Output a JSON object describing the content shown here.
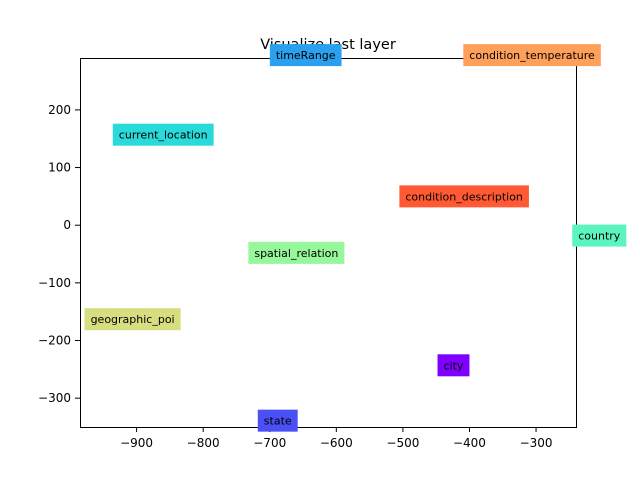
{
  "chart_data": {
    "type": "scatter",
    "title": "Visualize last layer",
    "xlabel": "",
    "ylabel": "",
    "xlim": [
      -985,
      -240
    ],
    "ylim": [
      -350,
      290
    ],
    "xticks": [
      -900,
      -800,
      -700,
      -600,
      -500,
      -400,
      -300
    ],
    "yticks": [
      -300,
      -200,
      -100,
      0,
      100,
      200
    ],
    "xtick_labels": [
      "−900",
      "−800",
      "−700",
      "−600",
      "−500",
      "−400",
      "−300"
    ],
    "ytick_labels": [
      "−300",
      "−200",
      "−100",
      "0",
      "100",
      "200"
    ],
    "grid": false,
    "points": [
      {
        "label": "timeRange",
        "x": -646,
        "y": 295,
        "color": "#2aa0ee"
      },
      {
        "label": "condition_temperature",
        "x": -306,
        "y": 295,
        "color": "#ffa05a"
      },
      {
        "label": "current_location",
        "x": -860,
        "y": 157,
        "color": "#2ad9d9"
      },
      {
        "label": "condition_description",
        "x": -408,
        "y": 50,
        "color": "#ff5a33"
      },
      {
        "label": "country",
        "x": -205,
        "y": -18,
        "color": "#5cf5c0"
      },
      {
        "label": "spatial_relation",
        "x": -660,
        "y": -48,
        "color": "#97f89b"
      },
      {
        "label": "geographic_poi",
        "x": -906,
        "y": -163,
        "color": "#d6de80"
      },
      {
        "label": "city",
        "x": -424,
        "y": -243,
        "color": "#8000ff"
      },
      {
        "label": "state",
        "x": -688,
        "y": -339,
        "color": "#4a50f5"
      }
    ]
  }
}
